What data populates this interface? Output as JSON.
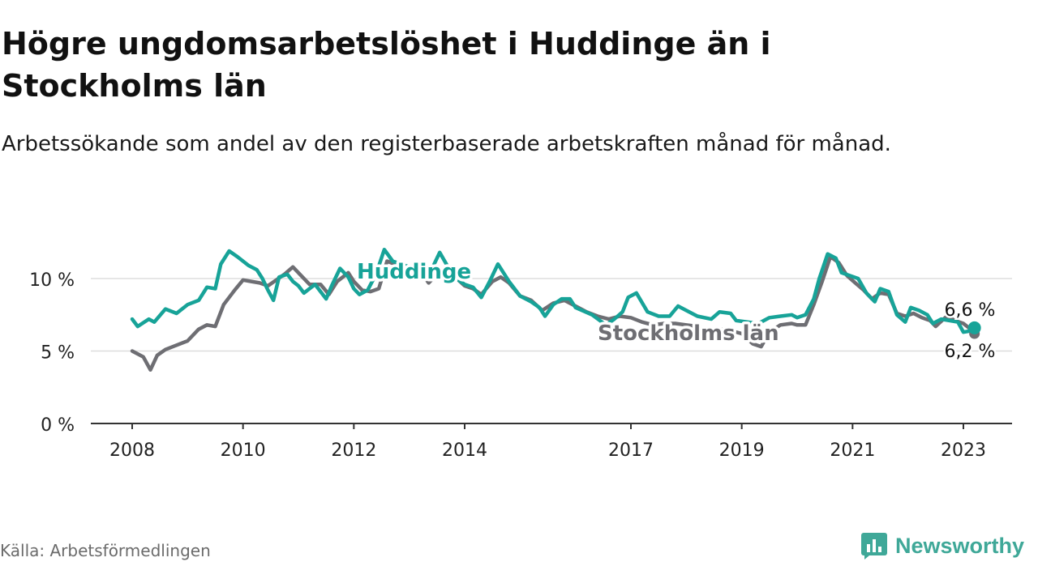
{
  "title": "Högre ungdomsarbetslöshet i Huddinge än i Stockholms län",
  "subtitle": "Arbetssökande som andel av den registerbaserade arbetskraften månad för månad.",
  "source": "Källa: Arbetsförmedlingen",
  "brand": {
    "name": "Newsworthy",
    "icon": "newsworthy-logo-icon"
  },
  "colors": {
    "huddinge": "#17a398",
    "stockholm": "#6e6e73",
    "grid": "#dddddd",
    "axis": "#333333"
  },
  "chart_data": {
    "type": "line",
    "title": "Högre ungdomsarbetslöshet i Huddinge än i Stockholms län",
    "xlabel": "",
    "ylabel": "",
    "xlim": [
      2008.0,
      2023.95
    ],
    "ylim": [
      0,
      13
    ],
    "y_ticks": [
      0,
      5,
      10
    ],
    "y_tick_labels": [
      "0 %",
      "5 %",
      "10 %"
    ],
    "x_ticks": [
      2008,
      2010,
      2012,
      2014,
      2017,
      2019,
      2021,
      2023
    ],
    "x_tick_labels": [
      "2008",
      "2010",
      "2012",
      "2014",
      "2017",
      "2019",
      "2021",
      "2023"
    ],
    "grid": true,
    "series": [
      {
        "name": "Huddinge",
        "label": "Huddinge",
        "end_label": "6,6 %",
        "points": [
          [
            2008.0,
            7.2
          ],
          [
            2008.1,
            6.7
          ],
          [
            2008.3,
            7.2
          ],
          [
            2008.4,
            7.0
          ],
          [
            2008.6,
            7.9
          ],
          [
            2008.8,
            7.6
          ],
          [
            2009.0,
            8.2
          ],
          [
            2009.2,
            8.5
          ],
          [
            2009.35,
            9.4
          ],
          [
            2009.5,
            9.3
          ],
          [
            2009.6,
            11.0
          ],
          [
            2009.75,
            11.9
          ],
          [
            2009.9,
            11.5
          ],
          [
            2010.1,
            10.9
          ],
          [
            2010.25,
            10.6
          ],
          [
            2010.35,
            10.0
          ],
          [
            2010.45,
            9.2
          ],
          [
            2010.55,
            8.5
          ],
          [
            2010.65,
            10.1
          ],
          [
            2010.8,
            10.3
          ],
          [
            2010.9,
            9.8
          ],
          [
            2011.0,
            9.5
          ],
          [
            2011.1,
            9.0
          ],
          [
            2011.3,
            9.6
          ],
          [
            2011.5,
            8.6
          ],
          [
            2011.6,
            9.5
          ],
          [
            2011.75,
            10.7
          ],
          [
            2011.9,
            10.1
          ],
          [
            2012.0,
            9.3
          ],
          [
            2012.1,
            8.9
          ],
          [
            2012.25,
            9.2
          ],
          [
            2012.4,
            10.3
          ],
          [
            2012.55,
            12.0
          ],
          [
            2012.7,
            11.2
          ],
          [
            2012.85,
            11.0
          ],
          [
            2013.0,
            10.8
          ],
          [
            2013.2,
            11.0
          ],
          [
            2013.4,
            10.6
          ],
          [
            2013.55,
            11.8
          ],
          [
            2013.7,
            10.8
          ],
          [
            2013.85,
            10.0
          ],
          [
            2014.0,
            9.6
          ],
          [
            2014.15,
            9.4
          ],
          [
            2014.3,
            8.7
          ],
          [
            2014.45,
            9.8
          ],
          [
            2014.6,
            11.0
          ],
          [
            2014.8,
            9.8
          ],
          [
            2015.0,
            8.8
          ],
          [
            2015.2,
            8.4
          ],
          [
            2015.35,
            8.0
          ],
          [
            2015.45,
            7.4
          ],
          [
            2015.6,
            8.2
          ],
          [
            2015.75,
            8.6
          ],
          [
            2015.9,
            8.6
          ],
          [
            2016.0,
            8.0
          ],
          [
            2016.3,
            7.5
          ],
          [
            2016.55,
            6.8
          ],
          [
            2016.7,
            7.2
          ],
          [
            2016.85,
            7.7
          ],
          [
            2016.95,
            8.7
          ],
          [
            2017.1,
            9.0
          ],
          [
            2017.3,
            7.7
          ],
          [
            2017.5,
            7.4
          ],
          [
            2017.7,
            7.4
          ],
          [
            2017.85,
            8.1
          ],
          [
            2018.0,
            7.8
          ],
          [
            2018.2,
            7.4
          ],
          [
            2018.45,
            7.2
          ],
          [
            2018.6,
            7.7
          ],
          [
            2018.8,
            7.6
          ],
          [
            2018.9,
            7.1
          ],
          [
            2019.1,
            7.0
          ],
          [
            2019.3,
            6.9
          ],
          [
            2019.5,
            7.3
          ],
          [
            2019.7,
            7.4
          ],
          [
            2019.9,
            7.5
          ],
          [
            2020.0,
            7.3
          ],
          [
            2020.15,
            7.5
          ],
          [
            2020.3,
            8.6
          ],
          [
            2020.4,
            10.0
          ],
          [
            2020.55,
            11.7
          ],
          [
            2020.7,
            11.4
          ],
          [
            2020.8,
            10.4
          ],
          [
            2020.95,
            10.2
          ],
          [
            2021.1,
            10.0
          ],
          [
            2021.25,
            9.0
          ],
          [
            2021.4,
            8.4
          ],
          [
            2021.5,
            9.3
          ],
          [
            2021.65,
            9.1
          ],
          [
            2021.8,
            7.5
          ],
          [
            2021.95,
            7.0
          ],
          [
            2022.05,
            8.0
          ],
          [
            2022.2,
            7.8
          ],
          [
            2022.35,
            7.5
          ],
          [
            2022.45,
            6.9
          ],
          [
            2022.6,
            7.2
          ],
          [
            2022.75,
            7.1
          ],
          [
            2022.9,
            7.0
          ],
          [
            2023.0,
            6.3
          ],
          [
            2023.15,
            6.4
          ],
          [
            2023.2,
            6.6
          ]
        ]
      },
      {
        "name": "Stockholms län",
        "label": "Stockholms län",
        "end_label": "6,2 %",
        "points": [
          [
            2008.0,
            5.0
          ],
          [
            2008.2,
            4.6
          ],
          [
            2008.33,
            3.7
          ],
          [
            2008.45,
            4.7
          ],
          [
            2008.6,
            5.1
          ],
          [
            2008.8,
            5.4
          ],
          [
            2009.0,
            5.7
          ],
          [
            2009.2,
            6.5
          ],
          [
            2009.35,
            6.8
          ],
          [
            2009.5,
            6.7
          ],
          [
            2009.65,
            8.2
          ],
          [
            2009.85,
            9.2
          ],
          [
            2010.0,
            9.9
          ],
          [
            2010.15,
            9.8
          ],
          [
            2010.3,
            9.7
          ],
          [
            2010.45,
            9.5
          ],
          [
            2010.6,
            9.9
          ],
          [
            2010.75,
            10.3
          ],
          [
            2010.9,
            10.8
          ],
          [
            2011.05,
            10.2
          ],
          [
            2011.2,
            9.6
          ],
          [
            2011.4,
            9.6
          ],
          [
            2011.55,
            8.9
          ],
          [
            2011.7,
            9.8
          ],
          [
            2011.9,
            10.4
          ],
          [
            2012.0,
            9.8
          ],
          [
            2012.15,
            9.2
          ],
          [
            2012.3,
            9.1
          ],
          [
            2012.45,
            9.3
          ],
          [
            2012.6,
            11.2
          ],
          [
            2012.8,
            10.9
          ],
          [
            2013.0,
            10.6
          ],
          [
            2013.2,
            10.5
          ],
          [
            2013.35,
            9.7
          ],
          [
            2013.5,
            10.3
          ],
          [
            2013.65,
            10.7
          ],
          [
            2013.8,
            10.2
          ],
          [
            2014.0,
            9.5
          ],
          [
            2014.15,
            9.3
          ],
          [
            2014.3,
            8.9
          ],
          [
            2014.5,
            9.8
          ],
          [
            2014.65,
            10.1
          ],
          [
            2014.8,
            9.7
          ],
          [
            2015.0,
            8.8
          ],
          [
            2015.2,
            8.5
          ],
          [
            2015.4,
            7.8
          ],
          [
            2015.6,
            8.3
          ],
          [
            2015.8,
            8.5
          ],
          [
            2016.0,
            8.1
          ],
          [
            2016.2,
            7.7
          ],
          [
            2016.4,
            7.4
          ],
          [
            2016.6,
            7.2
          ],
          [
            2016.8,
            7.4
          ],
          [
            2017.0,
            7.3
          ],
          [
            2017.2,
            7.0
          ],
          [
            2017.4,
            6.8
          ],
          [
            2017.6,
            6.9
          ],
          [
            2017.8,
            6.9
          ],
          [
            2018.0,
            6.8
          ],
          [
            2018.2,
            6.7
          ],
          [
            2018.4,
            6.4
          ],
          [
            2018.6,
            6.5
          ],
          [
            2018.8,
            6.4
          ],
          [
            2019.0,
            6.2
          ],
          [
            2019.2,
            5.5
          ],
          [
            2019.35,
            5.3
          ],
          [
            2019.5,
            6.3
          ],
          [
            2019.7,
            6.8
          ],
          [
            2019.9,
            6.9
          ],
          [
            2020.0,
            6.8
          ],
          [
            2020.15,
            6.8
          ],
          [
            2020.3,
            8.2
          ],
          [
            2020.45,
            9.8
          ],
          [
            2020.6,
            11.5
          ],
          [
            2020.75,
            11.1
          ],
          [
            2020.9,
            10.2
          ],
          [
            2021.05,
            9.7
          ],
          [
            2021.2,
            9.2
          ],
          [
            2021.35,
            8.6
          ],
          [
            2021.5,
            9.0
          ],
          [
            2021.65,
            8.9
          ],
          [
            2021.8,
            7.6
          ],
          [
            2021.95,
            7.4
          ],
          [
            2022.1,
            7.6
          ],
          [
            2022.25,
            7.3
          ],
          [
            2022.4,
            7.1
          ],
          [
            2022.5,
            6.7
          ],
          [
            2022.7,
            7.4
          ],
          [
            2022.85,
            7.1
          ],
          [
            2023.0,
            6.9
          ],
          [
            2023.1,
            6.6
          ],
          [
            2023.2,
            6.2
          ]
        ]
      }
    ]
  }
}
